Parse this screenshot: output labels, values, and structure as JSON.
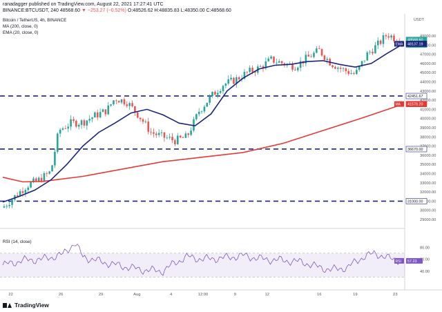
{
  "header": {
    "publisher_line": "ranadagger published on TradingView.com, August 22, 2021 17:27:41 UTC",
    "ticker_line": "BINANCE:BTCUSDT, 240",
    "last_price": "48568.60",
    "change": "▼ −253.27 (−0.52%)",
    "ohlc": "O:48526.62  H:48835.83  L:48350.00  C:48568.60"
  },
  "legend": {
    "title": "Bitcoin / TetherUS, 4h, BINANCE",
    "ma": "MA (200, close, 0)",
    "ema": "EMA (20, close, 0)"
  },
  "price_axis": {
    "unit": "USDT",
    "labels": [
      "49000.00",
      "48000.00",
      "47000.00",
      "46000.00",
      "45000.00",
      "44000.00",
      "43000.00",
      "42000.00",
      "41000.00",
      "40000.00",
      "39000.00",
      "38000.00",
      "37000.00",
      "36000.00",
      "35000.00",
      "34000.00",
      "33000.00",
      "32000.00",
      "31000.00",
      "30000.00",
      "29000.00"
    ],
    "tags": [
      {
        "text": "48568.60",
        "sub": "03:32:21",
        "value": 48568.6,
        "color": "#26a69a"
      },
      {
        "text": "48137.19",
        "value": 48137.19,
        "color": "#1a237e",
        "marker": "EMA"
      },
      {
        "text": "42451.67",
        "value": 42451.67,
        "color": "#ffffff",
        "border": "#1a237e"
      },
      {
        "text": "41578.20",
        "value": 41578.2,
        "color": "#e53935",
        "marker": "MA"
      },
      {
        "text": "36670.00",
        "value": 36670,
        "color": "#ffffff",
        "border": "#1a237e"
      },
      {
        "text": "31000.00",
        "value": 31000,
        "color": "#ffffff",
        "border": "#1a237e"
      }
    ]
  },
  "rsi": {
    "title": "RSI (14, close)",
    "labels": [
      "80.00",
      "60.00",
      "40.00"
    ],
    "tag": "57.23",
    "tag_label": "RSI"
  },
  "time_axis": [
    "22",
    "26",
    "29",
    "Aug",
    "4",
    "12:00",
    "9",
    "12",
    "16",
    "19",
    "23"
  ],
  "footer_brand": "TradingView",
  "colors": {
    "up": "#26a69a",
    "down": "#ef5350",
    "ema": "#1a237e",
    "ma": "#e53935",
    "rsi": "#7e57c2",
    "hline": "#1a237e"
  },
  "chart_data": {
    "type": "candlestick",
    "price_range": [
      28700,
      50200
    ],
    "horizontal_lines": [
      42451.67,
      36670,
      31000
    ],
    "ema_path": [
      [
        0,
        30900
      ],
      [
        4,
        31500
      ],
      [
        8,
        32200
      ],
      [
        12,
        33300
      ],
      [
        16,
        35000
      ],
      [
        20,
        37000
      ],
      [
        24,
        38500
      ],
      [
        28,
        39500
      ],
      [
        32,
        40600
      ],
      [
        36,
        41000
      ],
      [
        40,
        40400
      ],
      [
        44,
        39500
      ],
      [
        48,
        39200
      ],
      [
        52,
        40500
      ],
      [
        56,
        43000
      ],
      [
        60,
        44400
      ],
      [
        64,
        45400
      ],
      [
        68,
        45800
      ],
      [
        72,
        45900
      ],
      [
        76,
        46200
      ],
      [
        80,
        46300
      ],
      [
        84,
        45900
      ],
      [
        88,
        45600
      ],
      [
        92,
        46000
      ],
      [
        96,
        47100
      ],
      [
        100,
        48137
      ]
    ],
    "ma_path": [
      [
        0,
        33600
      ],
      [
        5,
        33100
      ],
      [
        10,
        33150
      ],
      [
        20,
        33700
      ],
      [
        30,
        34500
      ],
      [
        40,
        35300
      ],
      [
        50,
        35800
      ],
      [
        60,
        36300
      ],
      [
        70,
        37300
      ],
      [
        80,
        38700
      ],
      [
        90,
        40100
      ],
      [
        100,
        41578
      ]
    ],
    "candle_guide": [
      [
        0,
        30300
      ],
      [
        3,
        31500
      ],
      [
        6,
        32700
      ],
      [
        9,
        33300
      ],
      [
        12,
        34200
      ],
      [
        14,
        38700
      ],
      [
        17,
        39500
      ],
      [
        20,
        39600
      ],
      [
        23,
        40300
      ],
      [
        26,
        40900
      ],
      [
        28,
        42200
      ],
      [
        31,
        41800
      ],
      [
        34,
        40300
      ],
      [
        37,
        38500
      ],
      [
        40,
        38000
      ],
      [
        43,
        37600
      ],
      [
        46,
        38000
      ],
      [
        49,
        40800
      ],
      [
        52,
        42400
      ],
      [
        55,
        43700
      ],
      [
        58,
        44200
      ],
      [
        61,
        45000
      ],
      [
        64,
        45500
      ],
      [
        67,
        46400
      ],
      [
        70,
        46000
      ],
      [
        73,
        45700
      ],
      [
        76,
        46600
      ],
      [
        79,
        47400
      ],
      [
        82,
        46000
      ],
      [
        85,
        45300
      ],
      [
        88,
        44800
      ],
      [
        91,
        47000
      ],
      [
        94,
        48200
      ],
      [
        96,
        49200
      ],
      [
        98,
        48700
      ],
      [
        100,
        48568
      ]
    ],
    "rsi_path": [
      [
        0,
        50
      ],
      [
        5,
        58
      ],
      [
        10,
        60
      ],
      [
        15,
        68
      ],
      [
        18,
        88
      ],
      [
        20,
        64
      ],
      [
        25,
        55
      ],
      [
        30,
        48
      ],
      [
        35,
        42
      ],
      [
        40,
        40
      ],
      [
        43,
        54
      ],
      [
        46,
        64
      ],
      [
        50,
        60
      ],
      [
        55,
        62
      ],
      [
        60,
        66
      ],
      [
        65,
        60
      ],
      [
        70,
        58
      ],
      [
        75,
        55
      ],
      [
        78,
        48
      ],
      [
        82,
        42
      ],
      [
        86,
        46
      ],
      [
        90,
        64
      ],
      [
        93,
        70
      ],
      [
        96,
        62
      ],
      [
        100,
        57.23
      ]
    ]
  }
}
